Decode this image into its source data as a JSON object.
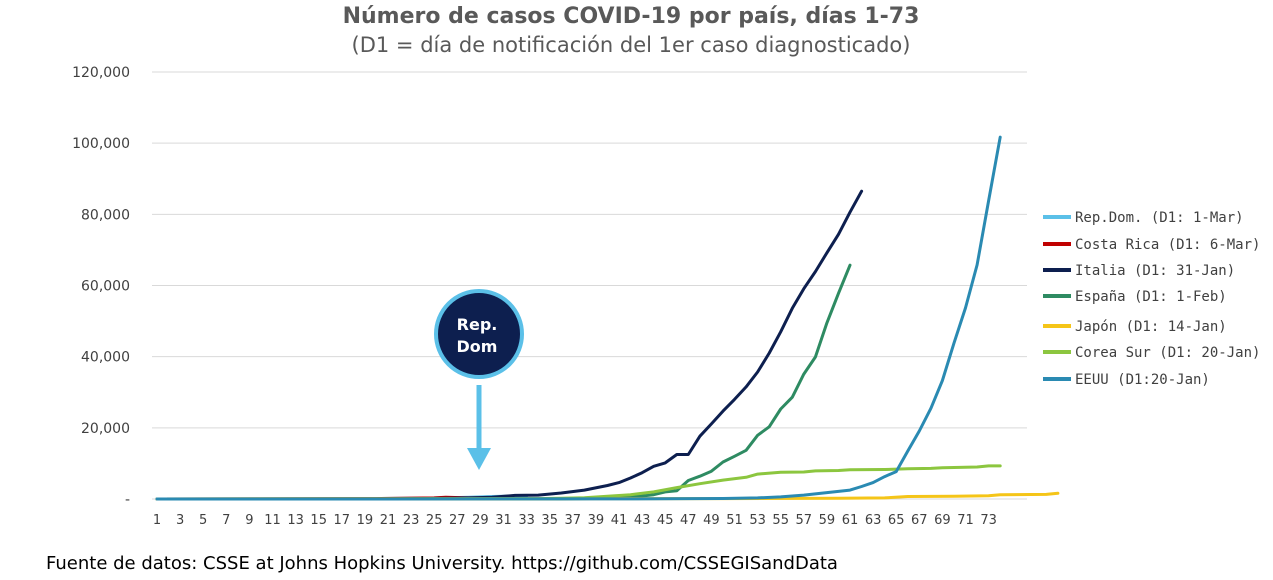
{
  "chart_data": {
    "type": "line",
    "title": "Número de casos COVID-19 por país, días 1-73",
    "subtitle": "(D1 = día de notificación del 1er caso diagnosticado)",
    "xlabel": "",
    "ylabel": "",
    "ylim": [
      0,
      120000
    ],
    "yticks": [
      {
        "value": 0,
        "label": "-"
      },
      {
        "value": 20000,
        "label": "20,000"
      },
      {
        "value": 40000,
        "label": "40,000"
      },
      {
        "value": 60000,
        "label": "60,000"
      },
      {
        "value": 80000,
        "label": "80,000"
      },
      {
        "value": 100000,
        "label": "100,000"
      },
      {
        "value": 120000,
        "label": "120,000"
      }
    ],
    "xlim": [
      1,
      79
    ],
    "xticks": [
      "1",
      "3",
      "5",
      "7",
      "9",
      "11",
      "13",
      "15",
      "17",
      "19",
      "21",
      "23",
      "25",
      "27",
      "29",
      "31",
      "33",
      "35",
      "37",
      "39",
      "41",
      "43",
      "45",
      "47",
      "49",
      "51",
      "53",
      "55",
      "57",
      "59",
      "61",
      "63",
      "65",
      "67",
      "69",
      "71",
      "73"
    ],
    "grid": true,
    "legend_position": "right",
    "series": [
      {
        "name": "Rep.Dom. (D1: 1-Mar)",
        "color": "#5bc0e8",
        "points": [
          [
            1,
            0
          ],
          [
            10,
            20
          ],
          [
            20,
            100
          ],
          [
            26,
            300
          ],
          [
            28,
            500
          ],
          [
            30,
            700
          ],
          [
            33,
            900
          ]
        ]
      },
      {
        "name": "Costa Rica (D1: 6-Mar)",
        "color": "#c00000",
        "points": [
          [
            1,
            0
          ],
          [
            10,
            20
          ],
          [
            20,
            100
          ],
          [
            25,
            300
          ],
          [
            26,
            500
          ],
          [
            28,
            300
          ],
          [
            30,
            350
          ]
        ]
      },
      {
        "name": "Italia (D1: 31-Jan)",
        "color": "#0d1f4f",
        "points": [
          [
            1,
            0
          ],
          [
            22,
            0
          ],
          [
            24,
            100
          ],
          [
            26,
            200
          ],
          [
            28,
            300
          ],
          [
            30,
            500
          ],
          [
            32,
            1000
          ],
          [
            34,
            1100
          ],
          [
            36,
            1700
          ],
          [
            38,
            2500
          ],
          [
            40,
            3800
          ],
          [
            41,
            4600
          ],
          [
            42,
            5900
          ],
          [
            43,
            7400
          ],
          [
            44,
            9200
          ],
          [
            45,
            10150
          ],
          [
            46,
            12500
          ],
          [
            47,
            12500
          ],
          [
            48,
            17660
          ],
          [
            49,
            21100
          ],
          [
            50,
            24700
          ],
          [
            51,
            27980
          ],
          [
            52,
            31500
          ],
          [
            53,
            35700
          ],
          [
            54,
            41000
          ],
          [
            55,
            47000
          ],
          [
            56,
            53600
          ],
          [
            57,
            59100
          ],
          [
            58,
            63900
          ],
          [
            59,
            69200
          ],
          [
            60,
            74400
          ],
          [
            61,
            80600
          ],
          [
            62,
            86500
          ]
        ]
      },
      {
        "name": "España (D1: 1-Feb)",
        "color": "#2e8b62",
        "points": [
          [
            1,
            0
          ],
          [
            36,
            0
          ],
          [
            40,
            200
          ],
          [
            42,
            500
          ],
          [
            44,
            1200
          ],
          [
            45,
            2000
          ],
          [
            46,
            2300
          ],
          [
            47,
            5200
          ],
          [
            48,
            6400
          ],
          [
            49,
            7800
          ],
          [
            50,
            10400
          ],
          [
            51,
            12000
          ],
          [
            52,
            13700
          ],
          [
            53,
            17900
          ],
          [
            54,
            20300
          ],
          [
            55,
            25300
          ],
          [
            56,
            28600
          ],
          [
            57,
            35100
          ],
          [
            58,
            39900
          ],
          [
            59,
            49500
          ],
          [
            60,
            57800
          ],
          [
            61,
            65700
          ]
        ]
      },
      {
        "name": "Japón (D1: 14-Jan)",
        "color": "#f5c518",
        "points": [
          [
            1,
            0
          ],
          [
            50,
            100
          ],
          [
            60,
            200
          ],
          [
            64,
            300
          ],
          [
            66,
            700
          ],
          [
            70,
            800
          ],
          [
            73,
            900
          ],
          [
            74,
            1200
          ],
          [
            78,
            1300
          ],
          [
            79,
            1600
          ]
        ]
      },
      {
        "name": "Corea Sur (D1: 20-Jan)",
        "color": "#8cc63f",
        "points": [
          [
            1,
            0
          ],
          [
            34,
            100
          ],
          [
            36,
            200
          ],
          [
            38,
            350
          ],
          [
            40,
            800
          ],
          [
            42,
            1200
          ],
          [
            44,
            2000
          ],
          [
            46,
            3200
          ],
          [
            48,
            4300
          ],
          [
            50,
            5300
          ],
          [
            52,
            6100
          ],
          [
            53,
            7000
          ],
          [
            55,
            7500
          ],
          [
            57,
            7600
          ],
          [
            58,
            7900
          ],
          [
            60,
            8000
          ],
          [
            61,
            8200
          ],
          [
            64,
            8300
          ],
          [
            66,
            8500
          ],
          [
            68,
            8600
          ],
          [
            69,
            8800
          ],
          [
            71,
            8900
          ],
          [
            72,
            9000
          ],
          [
            73,
            9300
          ],
          [
            74,
            9300
          ]
        ]
      },
      {
        "name": "EEUU (D1:20-Jan)",
        "color": "#2a8ab2",
        "points": [
          [
            1,
            0
          ],
          [
            40,
            20
          ],
          [
            45,
            50
          ],
          [
            50,
            150
          ],
          [
            53,
            300
          ],
          [
            55,
            600
          ],
          [
            57,
            1100
          ],
          [
            59,
            1800
          ],
          [
            61,
            2500
          ],
          [
            62,
            3500
          ],
          [
            63,
            4600
          ],
          [
            64,
            6300
          ],
          [
            65,
            7700
          ],
          [
            66,
            13500
          ],
          [
            67,
            19100
          ],
          [
            68,
            25500
          ],
          [
            69,
            33300
          ],
          [
            70,
            43800
          ],
          [
            71,
            53700
          ],
          [
            72,
            65800
          ],
          [
            73,
            83800
          ],
          [
            74,
            101700
          ]
        ]
      }
    ],
    "annotations": [
      {
        "text_lines": [
          "Rep.",
          "Dom"
        ],
        "x": 33,
        "arrow_to_y": 8000
      }
    ]
  },
  "source_note": "Fuente de datos: CSSE at Johns Hopkins University. https://github.com/CSSEGISandData"
}
